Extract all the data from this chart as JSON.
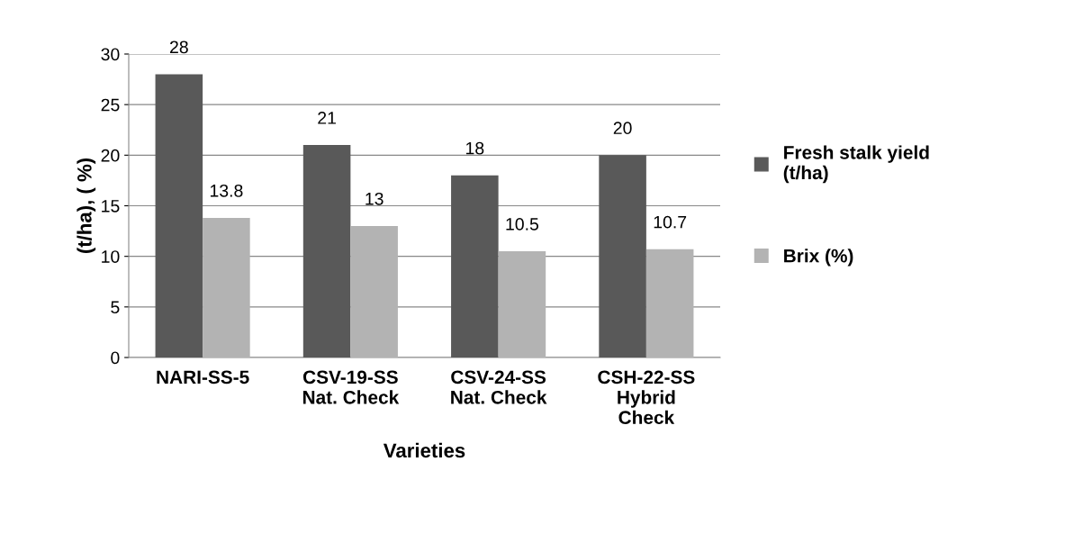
{
  "chart_data": {
    "type": "bar",
    "xlabel": "Varieties",
    "ylabel": "(t/ha), ( %)",
    "categories": [
      "NARI-SS-5",
      "CSV-19-SS\nNat. Check",
      "CSV-24-SS\nNat. Check",
      "CSH-22-SS\nHybrid\nCheck"
    ],
    "series": [
      {
        "name": "Fresh stalk yield\n(t/ha)",
        "color": "#595959",
        "values": [
          28,
          21,
          18,
          20
        ]
      },
      {
        "name": "Brix (%)",
        "color": "#b3b3b3",
        "values": [
          13.8,
          13,
          10.5,
          10.7
        ]
      }
    ],
    "ylim": [
      0,
      30
    ],
    "yticks": [
      0,
      5,
      10,
      15,
      20,
      25,
      30
    ],
    "grid": "y",
    "legend": "right",
    "data_labels": true
  }
}
